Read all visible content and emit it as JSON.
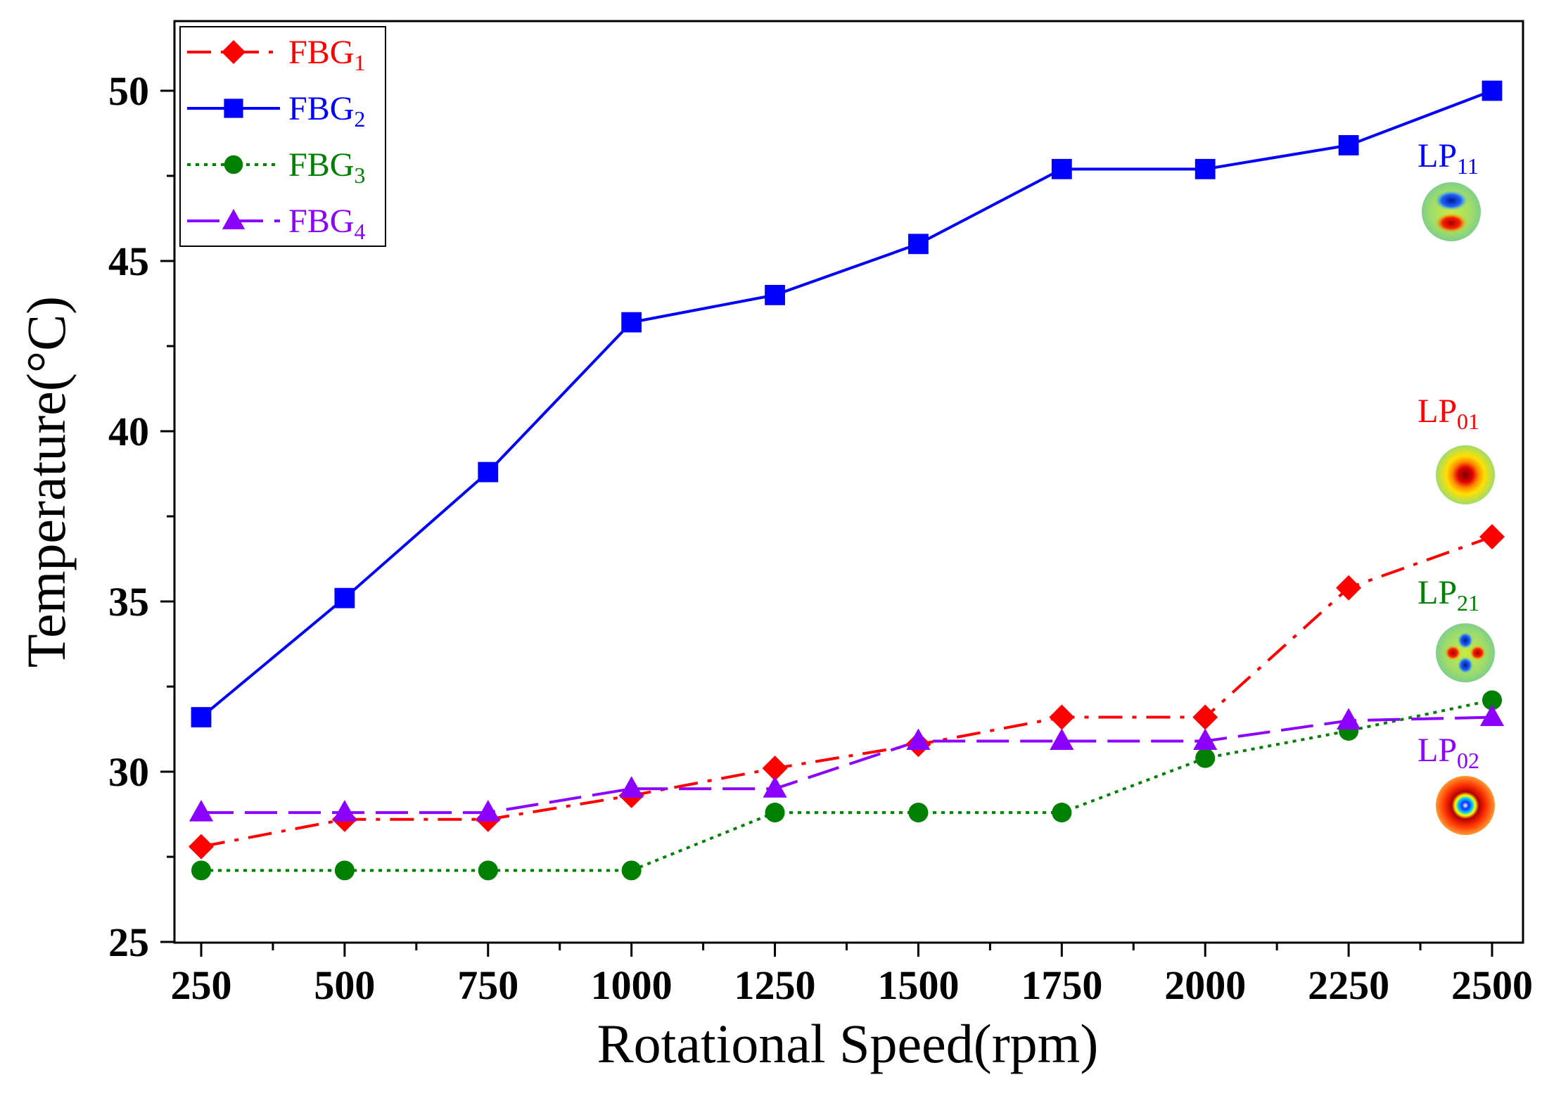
{
  "chart_data": {
    "type": "line",
    "title": "",
    "xlabel": "Rotational Speed(rpm)",
    "ylabel": "Temperature(°C)",
    "x": [
      250,
      500,
      750,
      1000,
      1250,
      1500,
      1750,
      2000,
      2250,
      2500
    ],
    "x_tick_labels": [
      "250",
      "500",
      "750",
      "1000",
      "1250",
      "1500",
      "1750",
      "2000",
      "2250",
      "2500"
    ],
    "y_ticks": [
      25,
      30,
      35,
      40,
      45,
      50
    ],
    "y_tick_labels": [
      "25",
      "30",
      "35",
      "40",
      "45",
      "50"
    ],
    "xlim": [
      210,
      2550
    ],
    "ylim": [
      25,
      52
    ],
    "legend_position": "top-left",
    "series": [
      {
        "name": "FBG1",
        "label_base": "FBG",
        "label_sub": "1",
        "color": "#ff0000",
        "marker": "diamond",
        "line_style": "dash-dot",
        "values": [
          27.8,
          28.6,
          28.6,
          29.3,
          30.1,
          30.8,
          31.6,
          31.6,
          35.4,
          36.9
        ]
      },
      {
        "name": "FBG2",
        "label_base": "FBG",
        "label_sub": "2",
        "color": "#0000ff",
        "marker": "square",
        "line_style": "solid",
        "values": [
          31.6,
          35.1,
          38.8,
          43.2,
          44.0,
          45.5,
          47.7,
          47.7,
          48.4,
          50.0
        ]
      },
      {
        "name": "FBG3",
        "label_base": "FBG",
        "label_sub": "3",
        "color": "#008000",
        "marker": "circle",
        "line_style": "dotted",
        "values": [
          27.1,
          27.1,
          27.1,
          27.1,
          28.8,
          28.8,
          28.8,
          30.4,
          31.2,
          32.1
        ]
      },
      {
        "name": "FBG4",
        "label_base": "FBG",
        "label_sub": "4",
        "color": "#8b00ff",
        "marker": "triangle",
        "line_style": "dashed",
        "values": [
          28.8,
          28.8,
          28.8,
          29.5,
          29.5,
          30.9,
          30.9,
          30.9,
          31.5,
          31.6
        ]
      }
    ],
    "annotations": [
      {
        "name": "LP11",
        "base": "LP",
        "sub": "11",
        "color": "#0000ff",
        "pattern": "two-lobe"
      },
      {
        "name": "LP01",
        "base": "LP",
        "sub": "01",
        "color": "#ff0000",
        "pattern": "gaussian"
      },
      {
        "name": "LP21",
        "base": "LP",
        "sub": "21",
        "color": "#008000",
        "pattern": "four-lobe"
      },
      {
        "name": "LP02",
        "base": "LP",
        "sub": "02",
        "color": "#8b00ff",
        "pattern": "ring"
      }
    ]
  }
}
